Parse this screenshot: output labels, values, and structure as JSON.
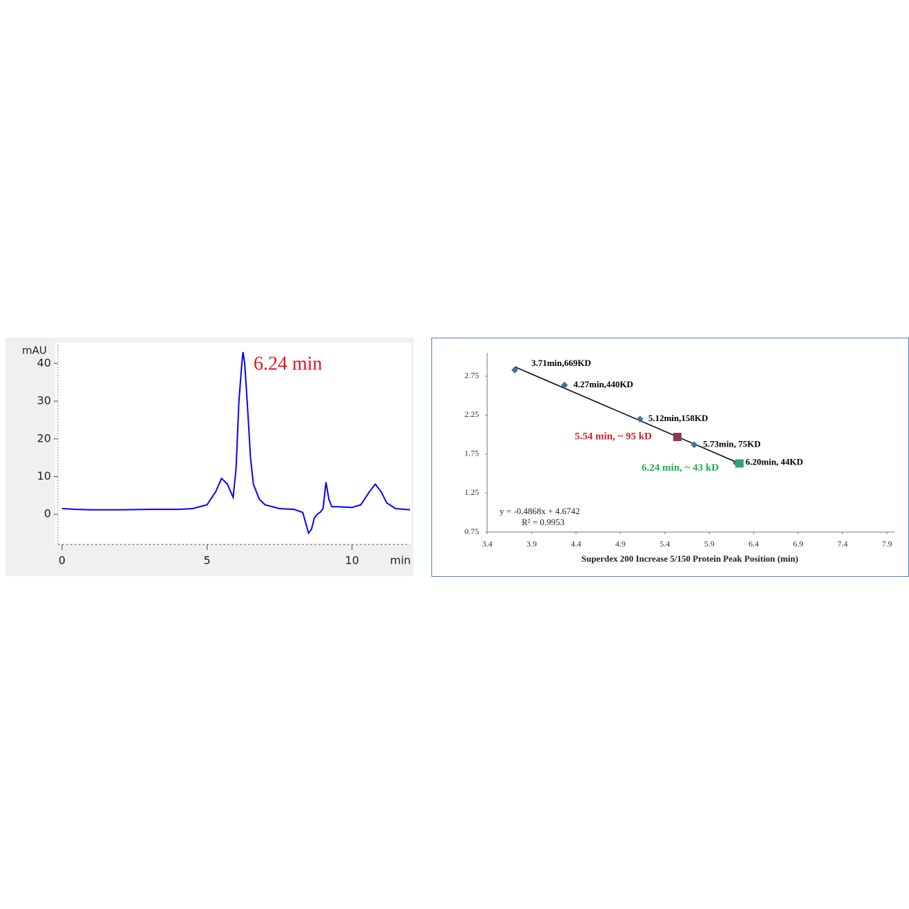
{
  "chart_data": [
    {
      "type": "line",
      "ylabel": "mAU",
      "xlabel": "min",
      "annotation": "6.24 min",
      "annotation_color": "#e8141c",
      "x": [
        0,
        0.5,
        1,
        2,
        3,
        4,
        4.5,
        5,
        5.3,
        5.5,
        5.7,
        5.9,
        6.0,
        6.1,
        6.2,
        6.24,
        6.3,
        6.4,
        6.5,
        6.6,
        6.8,
        7.0,
        7.5,
        8,
        8.3,
        8.5,
        8.6,
        8.7,
        8.8,
        8.9,
        9.0,
        9.1,
        9.2,
        9.3,
        9.5,
        10,
        10.3,
        10.6,
        10.8,
        11.0,
        11.2,
        11.5,
        12
      ],
      "values": [
        1.5,
        1.3,
        1.2,
        1.2,
        1.3,
        1.3,
        1.5,
        2.5,
        6,
        9.5,
        8,
        4.5,
        12,
        30,
        40,
        43,
        40,
        28,
        15,
        8,
        4,
        2.5,
        1.5,
        1.3,
        0.5,
        -5,
        -4,
        -1,
        0,
        0.5,
        1.5,
        8.5,
        4,
        2,
        2,
        1.8,
        2.5,
        6,
        8,
        6,
        3,
        1.5,
        1.2
      ],
      "color": "#0000ff",
      "xlim": [
        0,
        12
      ],
      "ylim": [
        -8,
        45
      ],
      "xticks": [
        0,
        5,
        10
      ],
      "yticks": [
        0,
        10,
        20,
        30,
        40
      ]
    },
    {
      "type": "scatter",
      "xlabel": "Superdex 200 Increase 5/150  Protein Peak Position (min)",
      "annotations": [
        "y = -0.4868x + 4.6742",
        "R² = 0.9953"
      ],
      "trendline": {
        "x": [
          3.71,
          6.24
        ],
        "values": [
          2.87,
          1.63
        ],
        "color": "#000000"
      },
      "series": [
        {
          "x": [
            3.71,
            4.27,
            5.12,
            5.73,
            6.2
          ],
          "values": [
            2.83,
            2.635,
            2.2,
            1.87,
            1.64
          ],
          "color": "#41719c",
          "marker": "diamond",
          "labels": [
            "3.71min,669KD",
            "4.27min,440KD",
            "5.12min,158KD",
            "5.73min, 75KD",
            "6.20min, 44KD"
          ],
          "label_color": "#000000"
        },
        {
          "x": [
            5.54
          ],
          "values": [
            1.97
          ],
          "color": "#8b3a4a",
          "marker": "square",
          "labels": [
            "5.54 min, ~ 95 kD"
          ],
          "label_color": "#d0202a"
        },
        {
          "x": [
            6.24
          ],
          "values": [
            1.63
          ],
          "color": "#2ea37a",
          "marker": "square",
          "labels": [
            "6.24 min, ~ 43 kD"
          ],
          "label_color": "#20b050"
        }
      ],
      "xlim": [
        3.4,
        7.9
      ],
      "ylim": [
        0.75,
        3.05
      ],
      "xticks": [
        3.4,
        3.9,
        4.4,
        4.9,
        5.4,
        5.9,
        6.4,
        6.9,
        7.4,
        7.9
      ],
      "yticks": [
        0.75,
        1.25,
        1.75,
        2.25,
        2.75
      ]
    }
  ]
}
